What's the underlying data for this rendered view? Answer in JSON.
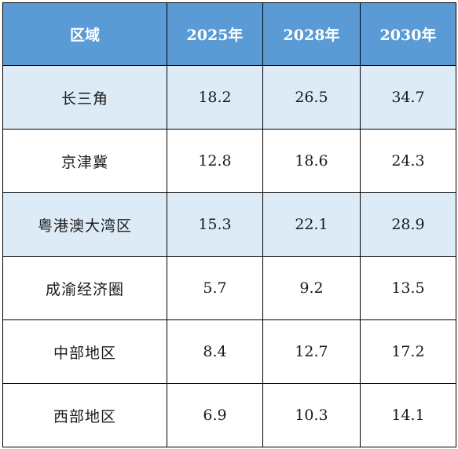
{
  "table": {
    "headers": [
      "区域",
      "2025年",
      "2028年",
      "2030年"
    ],
    "rows": [
      {
        "region": "长三角",
        "y2025": "18.2",
        "y2028": "26.5",
        "y2030": "34.7"
      },
      {
        "region": "京津冀",
        "y2025": "12.8",
        "y2028": "18.6",
        "y2030": "24.3"
      },
      {
        "region": "粤港澳大湾区",
        "y2025": "15.3",
        "y2028": "22.1",
        "y2030": "28.9"
      },
      {
        "region": "成渝经济圈",
        "y2025": "5.7",
        "y2028": "9.2",
        "y2030": "13.5"
      },
      {
        "region": "中部地区",
        "y2025": "8.4",
        "y2028": "12.7",
        "y2030": "17.2"
      },
      {
        "region": "西部地区",
        "y2025": "6.9",
        "y2028": "10.3",
        "y2030": "14.1"
      }
    ]
  },
  "colors": {
    "header_bg": "#5b9bd5",
    "header_text": "#ffffff",
    "shaded_row_bg": "#ddebf7",
    "plain_row_bg": "#ffffff",
    "border": "#000000"
  }
}
